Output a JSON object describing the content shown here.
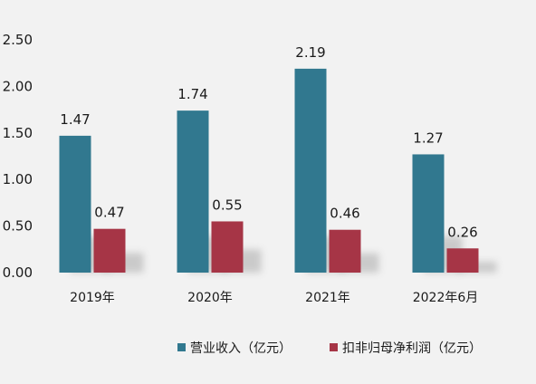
{
  "chart_data": {
    "type": "bar",
    "categories": [
      "2019年",
      "2020年",
      "2021年",
      "2022年6月"
    ],
    "series": [
      {
        "name": "营业收入（亿元）",
        "values": [
          1.47,
          1.74,
          2.19,
          1.27
        ],
        "color": "#31788f"
      },
      {
        "name": "扣非归母净利润（亿元）",
        "values": [
          0.47,
          0.55,
          0.46,
          0.26
        ],
        "color": "#a63546"
      }
    ],
    "ylim": [
      0,
      2.5
    ],
    "yticks": [
      "0.00",
      "0.50",
      "1.00",
      "1.50",
      "2.00",
      "2.50"
    ],
    "data_labels": true,
    "grid": false,
    "legend_position": "bottom"
  }
}
